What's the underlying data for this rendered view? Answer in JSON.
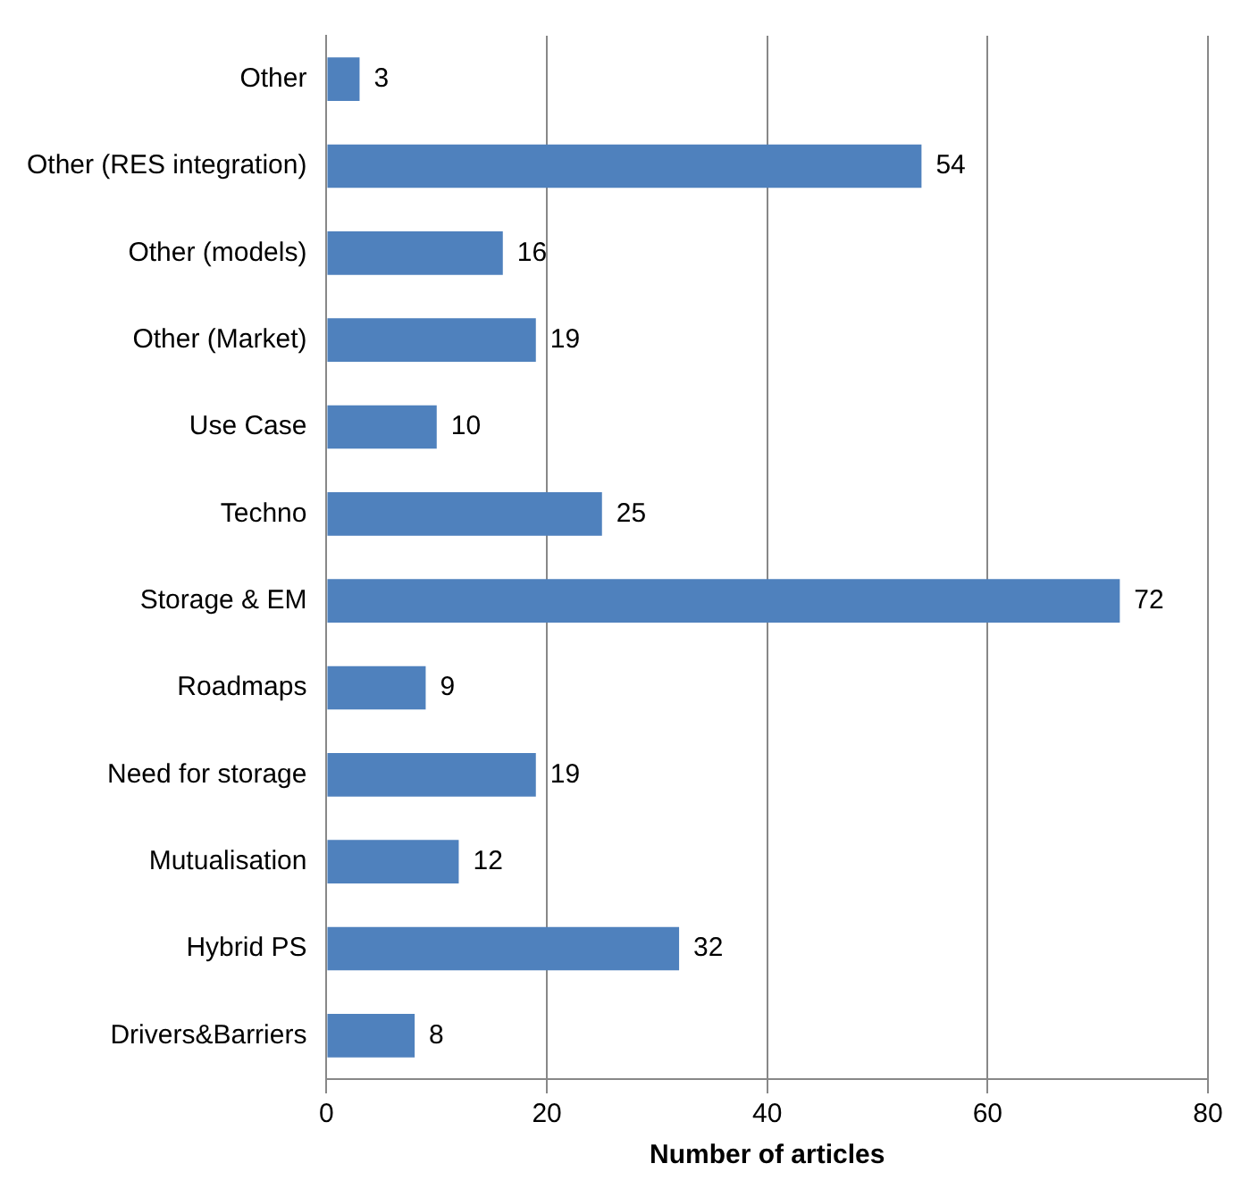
{
  "chart_data": {
    "type": "bar",
    "orientation": "horizontal",
    "xlabel": "Number of articles",
    "categories": [
      "Other",
      "Other (RES integration)",
      "Other (models)",
      "Other (Market)",
      "Use Case",
      "Techno",
      "Storage & EM",
      "Roadmaps",
      "Need for storage",
      "Mutualisation",
      "Hybrid PS",
      "Drivers&Barriers"
    ],
    "values": [
      3,
      54,
      16,
      19,
      10,
      25,
      72,
      9,
      19,
      12,
      32,
      8
    ],
    "color": "#4f81bd",
    "xlim": [
      0,
      80
    ],
    "xticks": [
      0,
      20,
      40,
      60,
      80
    ],
    "grid": "x",
    "data_labels": true,
    "legend": false
  }
}
